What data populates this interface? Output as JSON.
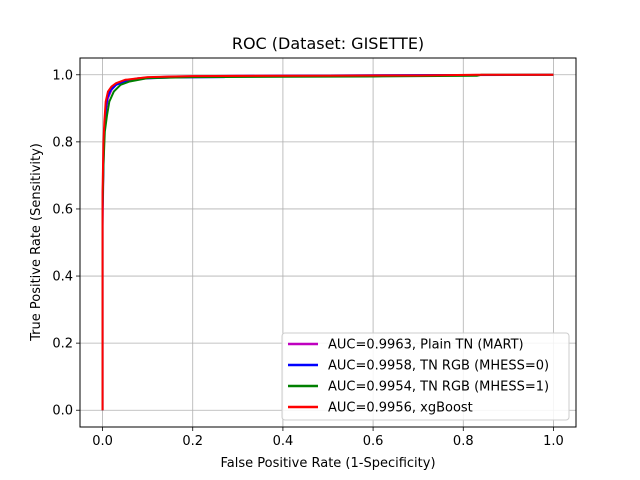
{
  "chart_data": {
    "type": "line",
    "title": "ROC (Dataset: GISETTE)",
    "xlabel": "False Positive Rate (1-Specificity)",
    "ylabel": "True Positive Rate (Sensitivity)",
    "xlim": [
      -0.05,
      1.05
    ],
    "ylim": [
      -0.05,
      1.05
    ],
    "xticks": [
      0.0,
      0.2,
      0.4,
      0.6,
      0.8,
      1.0
    ],
    "xtick_labels": [
      "0.0",
      "0.2",
      "0.4",
      "0.6",
      "0.8",
      "1.0"
    ],
    "yticks": [
      0.0,
      0.2,
      0.4,
      0.6,
      0.8,
      1.0
    ],
    "ytick_labels": [
      "0.0",
      "0.2",
      "0.4",
      "0.6",
      "0.8",
      "1.0"
    ],
    "grid": true,
    "legend_position": "bottom-right",
    "series": [
      {
        "name": "AUC=0.9963, Plain TN (MART)",
        "color": "#bf00bf",
        "points": [
          [
            0,
            0
          ],
          [
            0,
            0.55
          ],
          [
            0.002,
            0.72
          ],
          [
            0.004,
            0.84
          ],
          [
            0.008,
            0.9
          ],
          [
            0.012,
            0.93
          ],
          [
            0.02,
            0.955
          ],
          [
            0.03,
            0.97
          ],
          [
            0.05,
            0.982
          ],
          [
            0.08,
            0.99
          ],
          [
            0.15,
            0.995
          ],
          [
            0.3,
            0.997
          ],
          [
            0.5,
            0.998
          ],
          [
            0.8,
            0.999
          ],
          [
            1.0,
            1.0
          ]
        ]
      },
      {
        "name": "AUC=0.9958, TN RGB (MHESS=0)",
        "color": "#0000ff",
        "points": [
          [
            0,
            0
          ],
          [
            0,
            0.6
          ],
          [
            0.002,
            0.75
          ],
          [
            0.004,
            0.84
          ],
          [
            0.007,
            0.89
          ],
          [
            0.01,
            0.93
          ],
          [
            0.018,
            0.955
          ],
          [
            0.03,
            0.97
          ],
          [
            0.05,
            0.98
          ],
          [
            0.08,
            0.988
          ],
          [
            0.15,
            0.992
          ],
          [
            0.27,
            0.993
          ],
          [
            0.28,
            0.996
          ],
          [
            0.5,
            0.998
          ],
          [
            1.0,
            1.0
          ]
        ]
      },
      {
        "name": "AUC=0.9954, TN RGB (MHESS=1)",
        "color": "#008000",
        "points": [
          [
            0,
            0
          ],
          [
            0,
            0.6
          ],
          [
            0.002,
            0.73
          ],
          [
            0.005,
            0.83
          ],
          [
            0.01,
            0.88
          ],
          [
            0.015,
            0.92
          ],
          [
            0.025,
            0.95
          ],
          [
            0.04,
            0.97
          ],
          [
            0.06,
            0.98
          ],
          [
            0.1,
            0.99
          ],
          [
            0.2,
            0.993
          ],
          [
            0.4,
            0.994
          ],
          [
            0.6,
            0.995
          ],
          [
            0.83,
            0.997
          ],
          [
            0.84,
            1.0
          ],
          [
            1.0,
            1.0
          ]
        ]
      },
      {
        "name": "AUC=0.9956, xgBoost",
        "color": "#ff0000",
        "points": [
          [
            0,
            0
          ],
          [
            0,
            0.65
          ],
          [
            0.002,
            0.8
          ],
          [
            0.004,
            0.86
          ],
          [
            0.007,
            0.92
          ],
          [
            0.012,
            0.95
          ],
          [
            0.02,
            0.965
          ],
          [
            0.03,
            0.975
          ],
          [
            0.05,
            0.985
          ],
          [
            0.1,
            0.993
          ],
          [
            0.2,
            0.996
          ],
          [
            0.45,
            0.997
          ],
          [
            0.7,
            0.998
          ],
          [
            0.83,
            1.0
          ],
          [
            1.0,
            1.0
          ]
        ]
      }
    ]
  }
}
